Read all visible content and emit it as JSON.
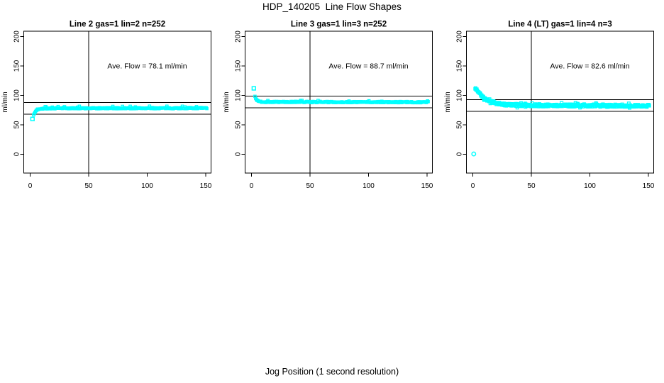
{
  "figure": {
    "title": "HDP_140205  Line Flow Shapes",
    "xlabel": "Jog Position (1 second resolution)",
    "background": "#ffffff"
  },
  "chart_data": {
    "type": "scatter",
    "title": "HDP_140205  Line Flow Shapes",
    "xlabel": "Jog Position (1 second resolution)",
    "ylabel": "ml/min",
    "point_color": "#00ffff",
    "line_color": "#000000",
    "x_ticks": [
      0,
      50,
      100,
      150
    ],
    "y_ticks": [
      0,
      50,
      100,
      150,
      200
    ],
    "xlim": [
      -5.5,
      154.5
    ],
    "ylim": [
      -32,
      209
    ],
    "grid": false,
    "legend": "none",
    "annotation_pos": {
      "x": 100,
      "y": 150
    },
    "panels": [
      {
        "title": "Line 2 gas=1 lin=2 n=252",
        "n": 252,
        "ave_flow": 78.1,
        "ave_label": "Ave. Flow =  78.1  ml/min",
        "hlines": [
          88.1,
          68.1
        ],
        "vline": 50,
        "x_start": 3,
        "x_end": 151,
        "band_halfwidth": 1.0,
        "outliers": [
          {
            "x": 2,
            "y": 60,
            "shape": "square"
          }
        ],
        "profile": [
          [
            3,
            65.5
          ],
          [
            4,
            70.5
          ],
          [
            5,
            74
          ],
          [
            6,
            76
          ],
          [
            8,
            77.3
          ],
          [
            12,
            77.9
          ],
          [
            30,
            78.1
          ],
          [
            60,
            78.2
          ],
          [
            100,
            78.3
          ],
          [
            151,
            78.5
          ]
        ]
      },
      {
        "title": "Line 3 gas=1 lin=3 n=252",
        "n": 252,
        "ave_flow": 88.7,
        "ave_label": "Ave. Flow =  88.7  ml/min",
        "hlines": [
          98.7,
          78.7
        ],
        "vline": 50,
        "x_start": 3,
        "x_end": 151,
        "band_halfwidth": 1.0,
        "outliers": [
          {
            "x": 2,
            "y": 112,
            "shape": "square"
          }
        ],
        "profile": [
          [
            3,
            97.5
          ],
          [
            4,
            93
          ],
          [
            5,
            91
          ],
          [
            6,
            90
          ],
          [
            8,
            89.2
          ],
          [
            12,
            88.9
          ],
          [
            40,
            88.8
          ],
          [
            80,
            88.6
          ],
          [
            151,
            88.5
          ]
        ]
      },
      {
        "title": "Line 4 (LT) gas=1 lin=4 n=3",
        "n": 3,
        "ave_flow": 82.6,
        "ave_label": "Ave. Flow =  82.6  ml/min",
        "hlines": [
          92.6,
          72.6
        ],
        "vline": 50,
        "x_start": 2,
        "x_end": 151,
        "band_halfwidth": 2.1,
        "outliers": [
          {
            "x": 0.8,
            "y": 0.5,
            "shape": "circle"
          }
        ],
        "profile": [
          [
            2,
            112
          ],
          [
            4,
            107.5
          ],
          [
            6,
            102.5
          ],
          [
            8,
            98.5
          ],
          [
            10,
            95.5
          ],
          [
            13,
            91.8
          ],
          [
            16,
            89.2
          ],
          [
            20,
            86.8
          ],
          [
            25,
            85
          ],
          [
            30,
            84.2
          ],
          [
            40,
            83.5
          ],
          [
            60,
            83
          ],
          [
            90,
            82.8
          ],
          [
            120,
            82.6
          ],
          [
            151,
            82.3
          ]
        ]
      }
    ]
  }
}
